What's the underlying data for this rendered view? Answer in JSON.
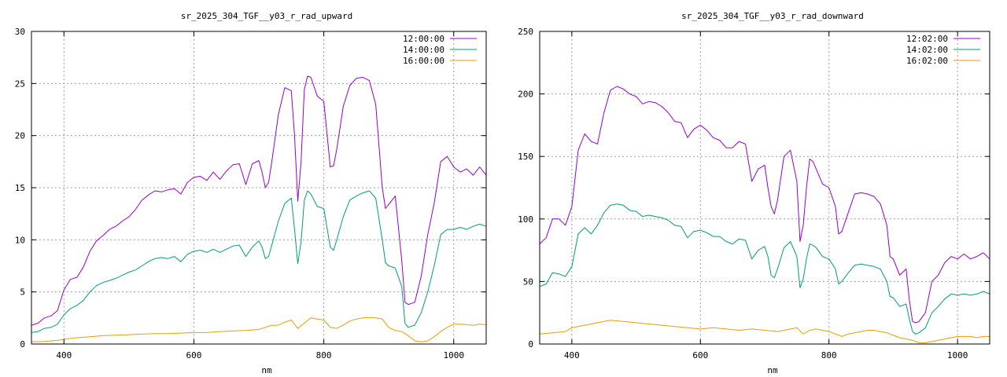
{
  "chart_data": [
    {
      "type": "line",
      "title": "sr_2025_304_TGF__y03_r_rad_upward",
      "xlabel": "nm",
      "ylabel": "",
      "xlim": [
        350,
        1050
      ],
      "ylim": [
        0,
        30
      ],
      "xticks": [
        400,
        600,
        800,
        1000
      ],
      "yticks": [
        0,
        5,
        10,
        15,
        20,
        25,
        30
      ],
      "grid": true,
      "legend_position": "top-right",
      "series": [
        {
          "name": "12:00:00",
          "color": "#9400d3",
          "x": [
            350,
            360,
            370,
            380,
            390,
            400,
            410,
            420,
            430,
            440,
            450,
            460,
            470,
            480,
            490,
            500,
            510,
            520,
            530,
            540,
            550,
            560,
            570,
            580,
            590,
            600,
            610,
            620,
            630,
            640,
            650,
            660,
            670,
            680,
            690,
            700,
            705,
            710,
            715,
            720,
            730,
            740,
            750,
            755,
            760,
            765,
            770,
            775,
            780,
            790,
            800,
            810,
            815,
            820,
            830,
            840,
            850,
            860,
            870,
            880,
            890,
            895,
            900,
            910,
            920,
            925,
            930,
            935,
            940,
            950,
            960,
            970,
            980,
            990,
            1000,
            1010,
            1020,
            1030,
            1040,
            1050
          ],
          "y": [
            1.8,
            2.0,
            2.5,
            2.7,
            3.2,
            5.2,
            6.2,
            6.4,
            7.4,
            8.9,
            9.9,
            10.4,
            11.0,
            11.3,
            11.8,
            12.2,
            12.9,
            13.8,
            14.3,
            14.7,
            14.6,
            14.8,
            14.9,
            14.4,
            15.5,
            16.0,
            16.1,
            15.7,
            16.5,
            15.8,
            16.6,
            17.2,
            17.3,
            15.3,
            17.3,
            17.6,
            16.5,
            15.0,
            15.5,
            17.5,
            22.0,
            24.6,
            24.3,
            20.0,
            13.7,
            17.5,
            24.4,
            25.7,
            25.6,
            23.8,
            23.3,
            17.0,
            17.1,
            18.7,
            22.8,
            24.8,
            25.5,
            25.6,
            25.3,
            23.0,
            15.0,
            13.0,
            13.4,
            14.2,
            8.0,
            4.0,
            3.8,
            3.9,
            4.0,
            6.5,
            10.5,
            13.5,
            17.5,
            18.0,
            17.0,
            16.5,
            16.8,
            16.2,
            17.0,
            16.2
          ]
        },
        {
          "name": "14:00:00",
          "color": "#009e73",
          "x": [
            350,
            360,
            370,
            380,
            390,
            400,
            410,
            420,
            430,
            440,
            450,
            460,
            470,
            480,
            490,
            500,
            510,
            520,
            530,
            540,
            550,
            560,
            570,
            580,
            590,
            600,
            610,
            620,
            630,
            640,
            650,
            660,
            670,
            680,
            690,
            700,
            705,
            710,
            715,
            720,
            730,
            740,
            750,
            755,
            760,
            765,
            770,
            775,
            780,
            790,
            800,
            810,
            815,
            820,
            830,
            840,
            850,
            860,
            870,
            880,
            890,
            895,
            900,
            910,
            920,
            925,
            930,
            935,
            940,
            950,
            960,
            970,
            980,
            990,
            1000,
            1010,
            1020,
            1030,
            1040,
            1050
          ],
          "y": [
            1.1,
            1.2,
            1.5,
            1.6,
            1.9,
            2.8,
            3.4,
            3.7,
            4.2,
            5.0,
            5.6,
            5.9,
            6.1,
            6.3,
            6.6,
            6.9,
            7.1,
            7.5,
            7.9,
            8.2,
            8.3,
            8.2,
            8.4,
            7.9,
            8.6,
            8.9,
            9.0,
            8.8,
            9.1,
            8.8,
            9.1,
            9.4,
            9.5,
            8.4,
            9.3,
            9.9,
            9.3,
            8.2,
            8.4,
            9.5,
            11.8,
            13.5,
            14.0,
            11.0,
            7.7,
            9.8,
            13.8,
            14.7,
            14.4,
            13.2,
            13.0,
            9.3,
            9.0,
            10.0,
            12.2,
            13.8,
            14.2,
            14.5,
            14.7,
            14.0,
            10.0,
            7.8,
            7.5,
            7.3,
            5.5,
            2.0,
            1.6,
            1.7,
            1.8,
            3.0,
            5.0,
            7.5,
            10.5,
            11.0,
            11.0,
            11.2,
            11.0,
            11.3,
            11.5,
            11.3
          ]
        },
        {
          "name": "16:00:00",
          "color": "#e69f00",
          "x": [
            350,
            370,
            390,
            400,
            420,
            440,
            460,
            480,
            500,
            520,
            540,
            560,
            580,
            600,
            620,
            640,
            660,
            680,
            700,
            710,
            720,
            730,
            740,
            750,
            760,
            770,
            780,
            790,
            800,
            810,
            820,
            830,
            840,
            850,
            860,
            870,
            880,
            890,
            900,
            910,
            920,
            930,
            940,
            950,
            960,
            970,
            980,
            990,
            1000,
            1010,
            1020,
            1030,
            1040,
            1050
          ],
          "y": [
            0.2,
            0.25,
            0.35,
            0.45,
            0.6,
            0.7,
            0.8,
            0.85,
            0.9,
            0.95,
            1.0,
            1.0,
            1.05,
            1.1,
            1.1,
            1.2,
            1.25,
            1.3,
            1.4,
            1.6,
            1.8,
            1.8,
            2.1,
            2.3,
            1.5,
            2.0,
            2.5,
            2.4,
            2.3,
            1.6,
            1.5,
            1.8,
            2.2,
            2.4,
            2.5,
            2.55,
            2.5,
            2.4,
            1.6,
            1.3,
            1.2,
            0.8,
            0.3,
            0.2,
            0.3,
            0.7,
            1.2,
            1.6,
            1.9,
            1.9,
            1.85,
            1.8,
            1.9,
            1.85
          ]
        }
      ]
    },
    {
      "type": "line",
      "title": "sr_2025_304_TGF__y03_r_rad_downward",
      "xlabel": "nm",
      "ylabel": "",
      "xlim": [
        350,
        1050
      ],
      "ylim": [
        0,
        250
      ],
      "xticks": [
        400,
        600,
        800,
        1000
      ],
      "yticks": [
        0,
        50,
        100,
        150,
        200,
        250
      ],
      "grid": true,
      "legend_position": "top-right",
      "series": [
        {
          "name": "12:02:00",
          "color": "#9400d3",
          "x": [
            350,
            360,
            370,
            380,
            390,
            400,
            410,
            420,
            430,
            440,
            450,
            460,
            470,
            480,
            490,
            500,
            510,
            520,
            530,
            540,
            550,
            560,
            570,
            580,
            590,
            600,
            610,
            620,
            630,
            640,
            650,
            660,
            670,
            680,
            690,
            700,
            705,
            710,
            715,
            720,
            730,
            740,
            750,
            755,
            760,
            765,
            770,
            775,
            780,
            790,
            800,
            810,
            815,
            820,
            830,
            840,
            850,
            860,
            870,
            880,
            890,
            895,
            900,
            910,
            920,
            925,
            930,
            935,
            940,
            950,
            960,
            970,
            980,
            990,
            1000,
            1010,
            1020,
            1030,
            1040,
            1050
          ],
          "y": [
            80,
            85,
            100,
            100,
            95,
            110,
            155,
            168,
            162,
            160,
            185,
            203,
            206,
            204,
            200,
            198,
            192,
            194,
            193,
            190,
            185,
            178,
            177,
            165,
            172,
            175,
            171,
            165,
            163,
            157,
            157,
            162,
            160,
            130,
            140,
            143,
            125,
            110,
            104,
            115,
            150,
            155,
            130,
            82,
            95,
            125,
            148,
            146,
            140,
            128,
            125,
            110,
            88,
            90,
            105,
            120,
            121,
            120,
            118,
            112,
            95,
            70,
            68,
            55,
            60,
            35,
            18,
            17,
            18,
            25,
            50,
            55,
            65,
            70,
            68,
            72,
            68,
            70,
            73,
            68
          ]
        },
        {
          "name": "14:02:00",
          "color": "#009e73",
          "x": [
            350,
            360,
            370,
            380,
            390,
            400,
            410,
            420,
            430,
            440,
            450,
            460,
            470,
            480,
            490,
            500,
            510,
            520,
            530,
            540,
            550,
            560,
            570,
            580,
            590,
            600,
            610,
            620,
            630,
            640,
            650,
            660,
            670,
            680,
            690,
            700,
            705,
            710,
            715,
            720,
            730,
            740,
            750,
            755,
            760,
            765,
            770,
            775,
            780,
            790,
            800,
            810,
            815,
            820,
            830,
            840,
            850,
            860,
            870,
            880,
            890,
            895,
            900,
            910,
            920,
            925,
            930,
            935,
            940,
            950,
            960,
            970,
            980,
            990,
            1000,
            1010,
            1020,
            1030,
            1040,
            1050
          ],
          "y": [
            46,
            48,
            57,
            56,
            54,
            62,
            88,
            93,
            88,
            95,
            105,
            111,
            112,
            111,
            107,
            106,
            102,
            103,
            102,
            101,
            99,
            95,
            94,
            85,
            90,
            91,
            89,
            86,
            86,
            82,
            80,
            84,
            83,
            68,
            75,
            78,
            70,
            55,
            53,
            60,
            77,
            82,
            70,
            45,
            52,
            68,
            80,
            79,
            77,
            70,
            68,
            60,
            48,
            50,
            57,
            63,
            64,
            63,
            62,
            60,
            50,
            38,
            37,
            30,
            32,
            20,
            10,
            8,
            9,
            13,
            25,
            30,
            36,
            40,
            39,
            40,
            39,
            40,
            42,
            40
          ]
        },
        {
          "name": "16:02:00",
          "color": "#e69f00",
          "x": [
            350,
            370,
            390,
            400,
            420,
            440,
            460,
            480,
            500,
            520,
            540,
            560,
            580,
            600,
            620,
            640,
            660,
            680,
            700,
            720,
            730,
            740,
            750,
            760,
            770,
            780,
            790,
            800,
            810,
            820,
            830,
            840,
            850,
            860,
            870,
            880,
            890,
            900,
            910,
            920,
            930,
            940,
            950,
            960,
            970,
            980,
            990,
            1000,
            1010,
            1020,
            1030,
            1040,
            1050
          ],
          "y": [
            8,
            9,
            10,
            13,
            15,
            17,
            19,
            18,
            17,
            16,
            15,
            14,
            13,
            12,
            13,
            12,
            11,
            12,
            11,
            10,
            11,
            12,
            13,
            8,
            11,
            12,
            11,
            10,
            8,
            6,
            8,
            9,
            10,
            11,
            11,
            10,
            9,
            7,
            5,
            4,
            3,
            1,
            1,
            2,
            3,
            4,
            5,
            6,
            6,
            6,
            5,
            6,
            6
          ]
        }
      ]
    }
  ]
}
